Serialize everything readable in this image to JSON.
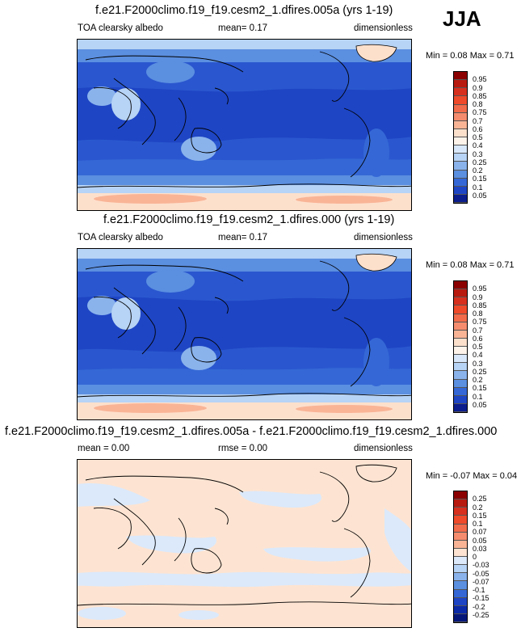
{
  "season": "JJA",
  "panels": [
    {
      "title": "f.e21.F2000climo.f19_f19.cesm2_1.dfires.005a (yrs 1-19)",
      "left_label": "TOA clearsky albedo",
      "mid_label": "mean=  0.17",
      "right_label": "dimensionless",
      "minmax": "Min =  0.08 Max =  0.71"
    },
    {
      "title": "f.e21.F2000climo.f19_f19.cesm2_1.dfires.000 (yrs 1-19)",
      "left_label": "TOA clearsky albedo",
      "mid_label": "mean=  0.17",
      "right_label": "dimensionless",
      "minmax": "Min =  0.08 Max =  0.71"
    },
    {
      "title": "f.e21.F2000climo.f19_f19.cesm2_1.dfires.005a - f.e21.F2000climo.f19_f19.cesm2_1.dfires.000",
      "left_label": "mean =  0.00",
      "mid_label": "rmse =  0.00",
      "right_label": "dimensionless",
      "minmax": "Min = -0.07 Max =  0.04"
    }
  ],
  "colorbars": {
    "albedo": {
      "labels": [
        "0.95",
        "0.9",
        "0.85",
        "0.8",
        "0.75",
        "0.7",
        "0.6",
        "0.5",
        "0.4",
        "0.3",
        "0.25",
        "0.2",
        "0.15",
        "0.1",
        "0.05"
      ],
      "colors": [
        "#8b0000",
        "#b81a0f",
        "#d7301f",
        "#ef4a2a",
        "#f26b4a",
        "#f58c6e",
        "#f9b496",
        "#fde0cc",
        "#fef3ea",
        "#d8e8fa",
        "#b7d3f5",
        "#8ab3ec",
        "#5b8fe0",
        "#3568d6",
        "#1e45c4",
        "#0b1d8c"
      ]
    },
    "diff": {
      "labels": [
        "0.25",
        "0.2",
        "0.15",
        "0.1",
        "0.07",
        "0.05",
        "0.03",
        "0",
        "-0.03",
        "-0.05",
        "-0.07",
        "-0.1",
        "-0.15",
        "-0.2",
        "-0.25"
      ],
      "colors": [
        "#8b0000",
        "#b81a0f",
        "#d7301f",
        "#ef4a2a",
        "#f26b4a",
        "#f58c6e",
        "#f9b496",
        "#fde4d2",
        "#dbe9fb",
        "#b7d3f5",
        "#8ab3ec",
        "#5b8fe0",
        "#3568d6",
        "#1e45c4",
        "#0b2aa8",
        "#06177a"
      ]
    }
  },
  "chart_data": [
    {
      "type": "heatmap",
      "title": "f.e21.F2000climo.f19_f19.cesm2_1.dfires.005a (yrs 1-19)",
      "variable": "TOA clearsky albedo",
      "units": "dimensionless",
      "mean": 0.17,
      "min": 0.08,
      "max": 0.71,
      "contour_levels": [
        0.05,
        0.1,
        0.15,
        0.2,
        0.25,
        0.3,
        0.4,
        0.5,
        0.6,
        0.7,
        0.75,
        0.8,
        0.85,
        0.9,
        0.95
      ]
    },
    {
      "type": "heatmap",
      "title": "f.e21.F2000climo.f19_f19.cesm2_1.dfires.000 (yrs 1-19)",
      "variable": "TOA clearsky albedo",
      "units": "dimensionless",
      "mean": 0.17,
      "min": 0.08,
      "max": 0.71,
      "contour_levels": [
        0.05,
        0.1,
        0.15,
        0.2,
        0.25,
        0.3,
        0.4,
        0.5,
        0.6,
        0.7,
        0.75,
        0.8,
        0.85,
        0.9,
        0.95
      ]
    },
    {
      "type": "heatmap",
      "title": "f.e21.F2000climo.f19_f19.cesm2_1.dfires.005a - f.e21.F2000climo.f19_f19.cesm2_1.dfires.000",
      "units": "dimensionless",
      "mean": 0.0,
      "rmse": 0.0,
      "min": -0.07,
      "max": 0.04,
      "contour_levels": [
        -0.25,
        -0.2,
        -0.15,
        -0.1,
        -0.07,
        -0.05,
        -0.03,
        0,
        0.03,
        0.05,
        0.07,
        0.1,
        0.15,
        0.2,
        0.25
      ]
    }
  ]
}
